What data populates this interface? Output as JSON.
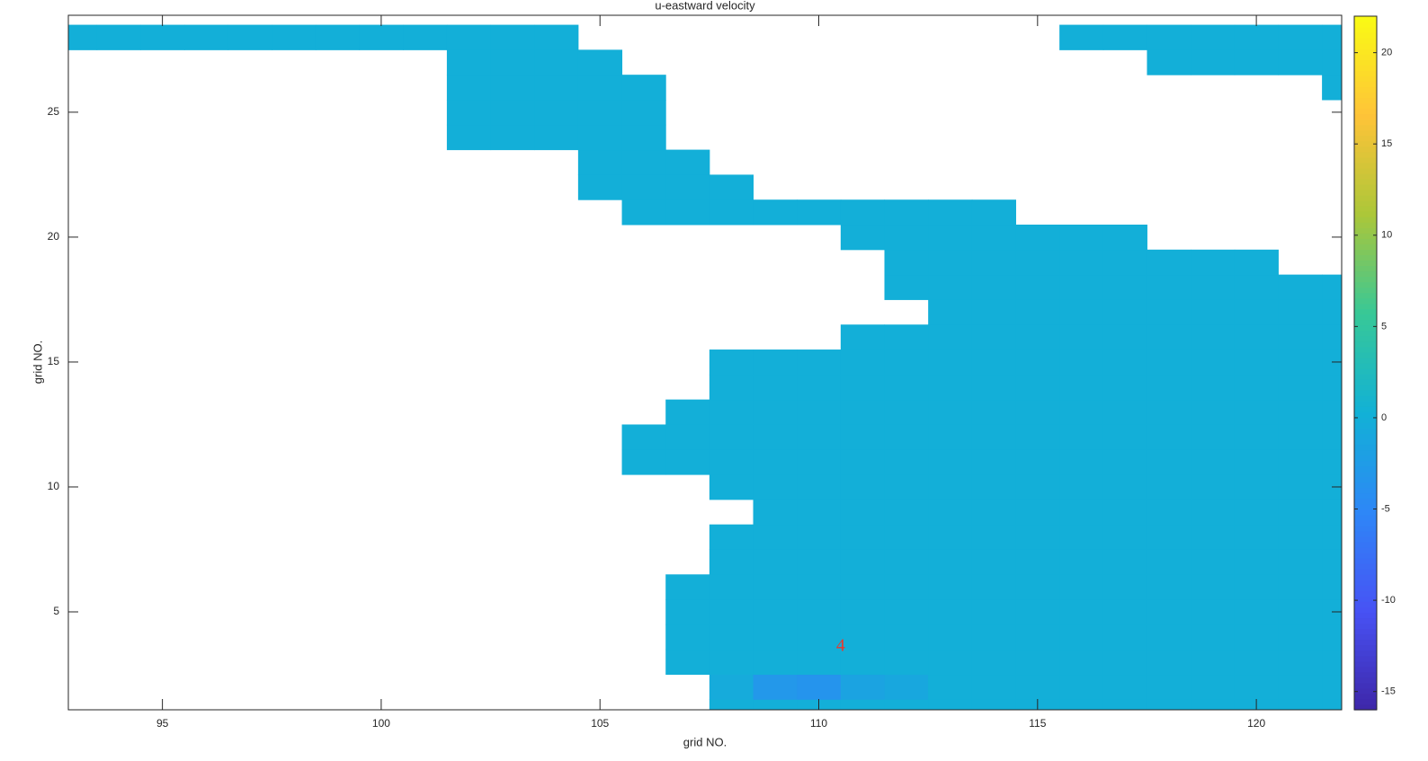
{
  "chart_data": {
    "type": "heatmap",
    "title": "u-eastward velocity",
    "xlabel": "grid NO.",
    "ylabel": "grid NO.",
    "colormap": "parula",
    "x": [
      93,
      94,
      95,
      96,
      97,
      98,
      99,
      100,
      101,
      102,
      103,
      104,
      105,
      106,
      107,
      108,
      109,
      110,
      111,
      112,
      113,
      114,
      115,
      116,
      117,
      118,
      119,
      120,
      121,
      122
    ],
    "y": [
      1,
      2,
      3,
      4,
      5,
      6,
      7,
      8,
      9,
      10,
      11,
      12,
      13,
      14,
      15,
      16,
      17,
      18,
      19,
      20,
      21,
      22,
      23,
      24,
      25,
      26,
      27,
      28
    ],
    "z": [
      [
        null,
        null,
        null,
        null,
        null,
        null,
        null,
        null,
        null,
        null,
        null,
        null,
        null,
        null,
        null,
        0,
        0,
        0,
        0,
        0,
        0,
        0,
        0,
        0,
        0,
        0,
        0,
        0,
        0,
        0
      ],
      [
        null,
        null,
        null,
        null,
        null,
        null,
        null,
        null,
        null,
        null,
        null,
        null,
        null,
        null,
        null,
        -0.5,
        -3,
        -3.5,
        -1.5,
        -1,
        0,
        0,
        0,
        0,
        0,
        0,
        0,
        0,
        0,
        0
      ],
      [
        null,
        null,
        null,
        null,
        null,
        null,
        null,
        null,
        null,
        null,
        null,
        null,
        null,
        null,
        0,
        0,
        0,
        0,
        0,
        0,
        0,
        0,
        0,
        0,
        0,
        0,
        0,
        0,
        0,
        0
      ],
      [
        null,
        null,
        null,
        null,
        null,
        null,
        null,
        null,
        null,
        null,
        null,
        null,
        null,
        null,
        0,
        0,
        0,
        0,
        0,
        0,
        0,
        0,
        0,
        0,
        0,
        0,
        0,
        0,
        0,
        0
      ],
      [
        null,
        null,
        null,
        null,
        null,
        null,
        null,
        null,
        null,
        null,
        null,
        null,
        null,
        null,
        0,
        0,
        0,
        0,
        0,
        0,
        0,
        0,
        0,
        0,
        0,
        0,
        0,
        0,
        0,
        0
      ],
      [
        null,
        null,
        null,
        null,
        null,
        null,
        null,
        null,
        null,
        null,
        null,
        null,
        null,
        null,
        0,
        0,
        0,
        0,
        0,
        0,
        0,
        0,
        0,
        0,
        0,
        0,
        0,
        0,
        0,
        0
      ],
      [
        null,
        null,
        null,
        null,
        null,
        null,
        null,
        null,
        null,
        null,
        null,
        null,
        null,
        null,
        null,
        0,
        0,
        0,
        0,
        0,
        0,
        0,
        0,
        0,
        0,
        0,
        0,
        0,
        0,
        0
      ],
      [
        null,
        null,
        null,
        null,
        null,
        null,
        null,
        null,
        null,
        null,
        null,
        null,
        null,
        null,
        null,
        0,
        0,
        0,
        0,
        0,
        0,
        0,
        0,
        0,
        0,
        0,
        0,
        0,
        0,
        0
      ],
      [
        null,
        null,
        null,
        null,
        null,
        null,
        null,
        null,
        null,
        null,
        null,
        null,
        null,
        null,
        null,
        null,
        0,
        0,
        0,
        0,
        0,
        0,
        0,
        0,
        0,
        0,
        0,
        0,
        0,
        0
      ],
      [
        null,
        null,
        null,
        null,
        null,
        null,
        null,
        null,
        null,
        null,
        null,
        null,
        null,
        null,
        null,
        0,
        0,
        0,
        0,
        0,
        0,
        0,
        0,
        0,
        0,
        0,
        0,
        0,
        0,
        0
      ],
      [
        null,
        null,
        null,
        null,
        null,
        null,
        null,
        null,
        null,
        null,
        null,
        null,
        null,
        0,
        0,
        0,
        0,
        0,
        0,
        0,
        0,
        0,
        0,
        0,
        0,
        0,
        0,
        0,
        0,
        0
      ],
      [
        null,
        null,
        null,
        null,
        null,
        null,
        null,
        null,
        null,
        null,
        null,
        null,
        null,
        0,
        0,
        0,
        0,
        0,
        0,
        0,
        0,
        0,
        0,
        0,
        0,
        0,
        0,
        0,
        0,
        0
      ],
      [
        null,
        null,
        null,
        null,
        null,
        null,
        null,
        null,
        null,
        null,
        null,
        null,
        null,
        null,
        0,
        0,
        0,
        0,
        0,
        0,
        0,
        0,
        0,
        0,
        0,
        0,
        0,
        0,
        0,
        0
      ],
      [
        null,
        null,
        null,
        null,
        null,
        null,
        null,
        null,
        null,
        null,
        null,
        null,
        null,
        null,
        null,
        0,
        0,
        0,
        0,
        0,
        0,
        0,
        0,
        0,
        0,
        0,
        0,
        0,
        0,
        0
      ],
      [
        null,
        null,
        null,
        null,
        null,
        null,
        null,
        null,
        null,
        null,
        null,
        null,
        null,
        null,
        null,
        0,
        0,
        0,
        0,
        0,
        0,
        0,
        0,
        0,
        0,
        0,
        0,
        0,
        0,
        0
      ],
      [
        null,
        null,
        null,
        null,
        null,
        null,
        null,
        null,
        null,
        null,
        null,
        null,
        null,
        null,
        null,
        null,
        null,
        null,
        0,
        0,
        0,
        0,
        0,
        0,
        0,
        0,
        0,
        0,
        0,
        0
      ],
      [
        null,
        null,
        null,
        null,
        null,
        null,
        null,
        null,
        null,
        null,
        null,
        null,
        null,
        null,
        null,
        null,
        null,
        null,
        null,
        null,
        0,
        0,
        0,
        0,
        0,
        0,
        0,
        0,
        0,
        0
      ],
      [
        null,
        null,
        null,
        null,
        null,
        null,
        null,
        null,
        null,
        null,
        null,
        null,
        null,
        null,
        null,
        null,
        null,
        null,
        null,
        0,
        0,
        0,
        0,
        0,
        0,
        0,
        0,
        0,
        0,
        0
      ],
      [
        null,
        null,
        null,
        null,
        null,
        null,
        null,
        null,
        null,
        null,
        null,
        null,
        null,
        null,
        null,
        null,
        null,
        null,
        null,
        0,
        0,
        0,
        0,
        0,
        0,
        0,
        0,
        0,
        null,
        null
      ],
      [
        null,
        null,
        null,
        null,
        null,
        null,
        null,
        null,
        null,
        null,
        null,
        null,
        null,
        null,
        null,
        null,
        null,
        null,
        0,
        0,
        0,
        0,
        0,
        0,
        0,
        null,
        null,
        null,
        null,
        null
      ],
      [
        null,
        null,
        null,
        null,
        null,
        null,
        null,
        null,
        null,
        null,
        null,
        null,
        null,
        0,
        0,
        0,
        0,
        0,
        0,
        0,
        0,
        0,
        null,
        null,
        null,
        null,
        null,
        null,
        null,
        null
      ],
      [
        null,
        null,
        null,
        null,
        null,
        null,
        null,
        null,
        null,
        null,
        null,
        null,
        0,
        0,
        0,
        0,
        null,
        null,
        null,
        null,
        null,
        null,
        null,
        null,
        null,
        null,
        null,
        null,
        null,
        null
      ],
      [
        null,
        null,
        null,
        null,
        null,
        null,
        null,
        null,
        null,
        null,
        null,
        null,
        0,
        0,
        0,
        null,
        null,
        null,
        null,
        null,
        null,
        null,
        null,
        null,
        null,
        null,
        null,
        null,
        null,
        null
      ],
      [
        null,
        null,
        null,
        null,
        null,
        null,
        null,
        null,
        null,
        0,
        0,
        0,
        0,
        0,
        null,
        null,
        null,
        null,
        null,
        null,
        null,
        null,
        null,
        null,
        null,
        null,
        null,
        null,
        null,
        null
      ],
      [
        null,
        null,
        null,
        null,
        null,
        null,
        null,
        null,
        null,
        0,
        0,
        0,
        0,
        0,
        null,
        null,
        null,
        null,
        null,
        null,
        null,
        null,
        null,
        null,
        null,
        null,
        null,
        null,
        null,
        null
      ],
      [
        null,
        null,
        null,
        null,
        null,
        null,
        null,
        null,
        null,
        0,
        0,
        0,
        0,
        0,
        null,
        null,
        null,
        null,
        null,
        null,
        null,
        null,
        null,
        null,
        null,
        null,
        null,
        null,
        null,
        0
      ],
      [
        null,
        null,
        null,
        null,
        null,
        null,
        null,
        null,
        null,
        0,
        0,
        0,
        0,
        null,
        null,
        null,
        null,
        null,
        null,
        null,
        null,
        null,
        null,
        null,
        null,
        0,
        0,
        0,
        0,
        0
      ],
      [
        0,
        0,
        0,
        0,
        0,
        0,
        0,
        0,
        0,
        0,
        0,
        0,
        null,
        null,
        null,
        null,
        null,
        null,
        null,
        null,
        null,
        null,
        null,
        0,
        0,
        0,
        0,
        0,
        0,
        0
      ]
    ],
    "xlim": [
      92.85,
      121.95
    ],
    "ylim": [
      1.08,
      28.88
    ],
    "xticks": [
      95,
      100,
      105,
      110,
      115,
      120
    ],
    "yticks": [
      5,
      10,
      15,
      20,
      25
    ],
    "colorbar": {
      "clim": [
        -16,
        22
      ],
      "ticks": [
        -15,
        -10,
        -5,
        0,
        5,
        10,
        15,
        20
      ]
    },
    "annotations": [
      {
        "text": "4",
        "x": 110.5,
        "y": 3.6,
        "color": "#e8392e"
      }
    ]
  }
}
